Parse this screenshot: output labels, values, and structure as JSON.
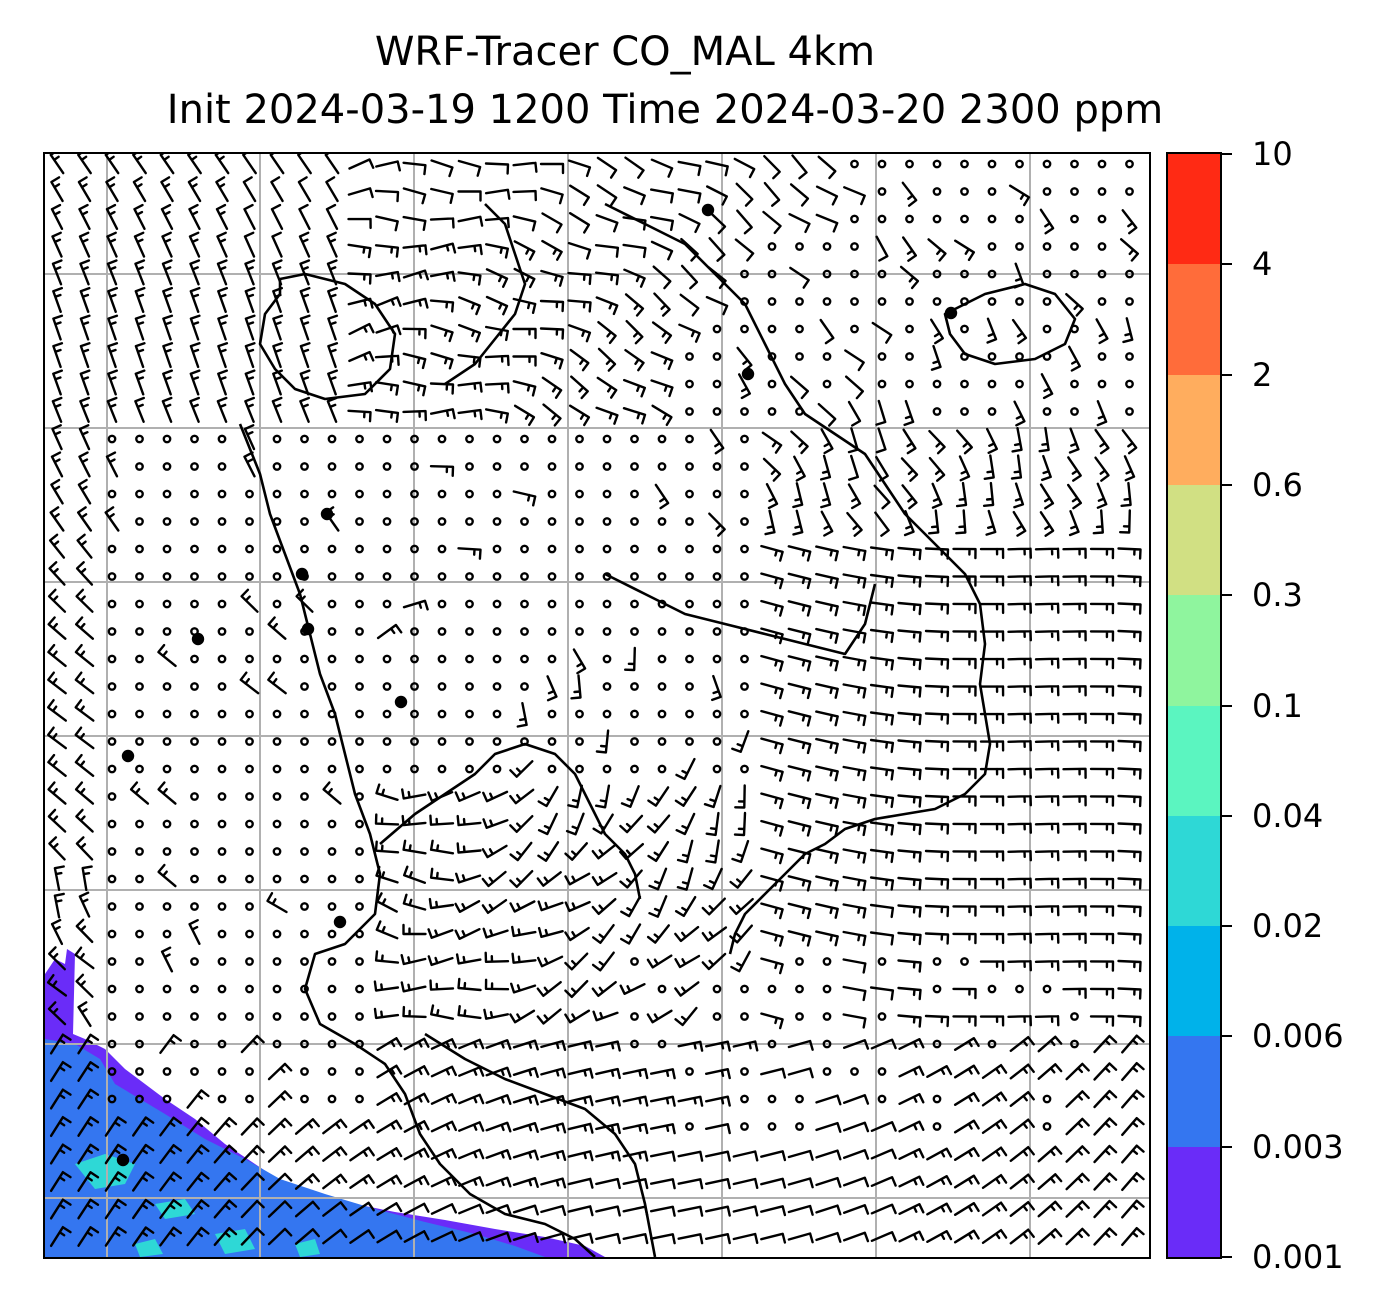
{
  "title": {
    "line1": "WRF-Tracer CO_MAL 4km",
    "line2": "Init 2024-03-19 1200 Time 2024-03-20 2300 ppm"
  },
  "colorbar": {
    "labels": [
      "10",
      "4",
      "2",
      "0.6",
      "0.3",
      "0.1",
      "0.04",
      "0.02",
      "0.006",
      "0.003",
      "0.001"
    ],
    "colors_top_to_bottom": [
      "#ff2a14",
      "#ff6c3a",
      "#ffad5e",
      "#d1e083",
      "#8ff59e",
      "#5bf5c0",
      "#2ed8d6",
      "#00b2ea",
      "#3476f0",
      "#6a2cf8"
    ]
  },
  "map": {
    "grid": "on",
    "barb_color": "#000000",
    "tracer_colors": {
      "low": "#6a2cf8",
      "mid": "#3476f0",
      "high": "#2ed8d6"
    }
  }
}
